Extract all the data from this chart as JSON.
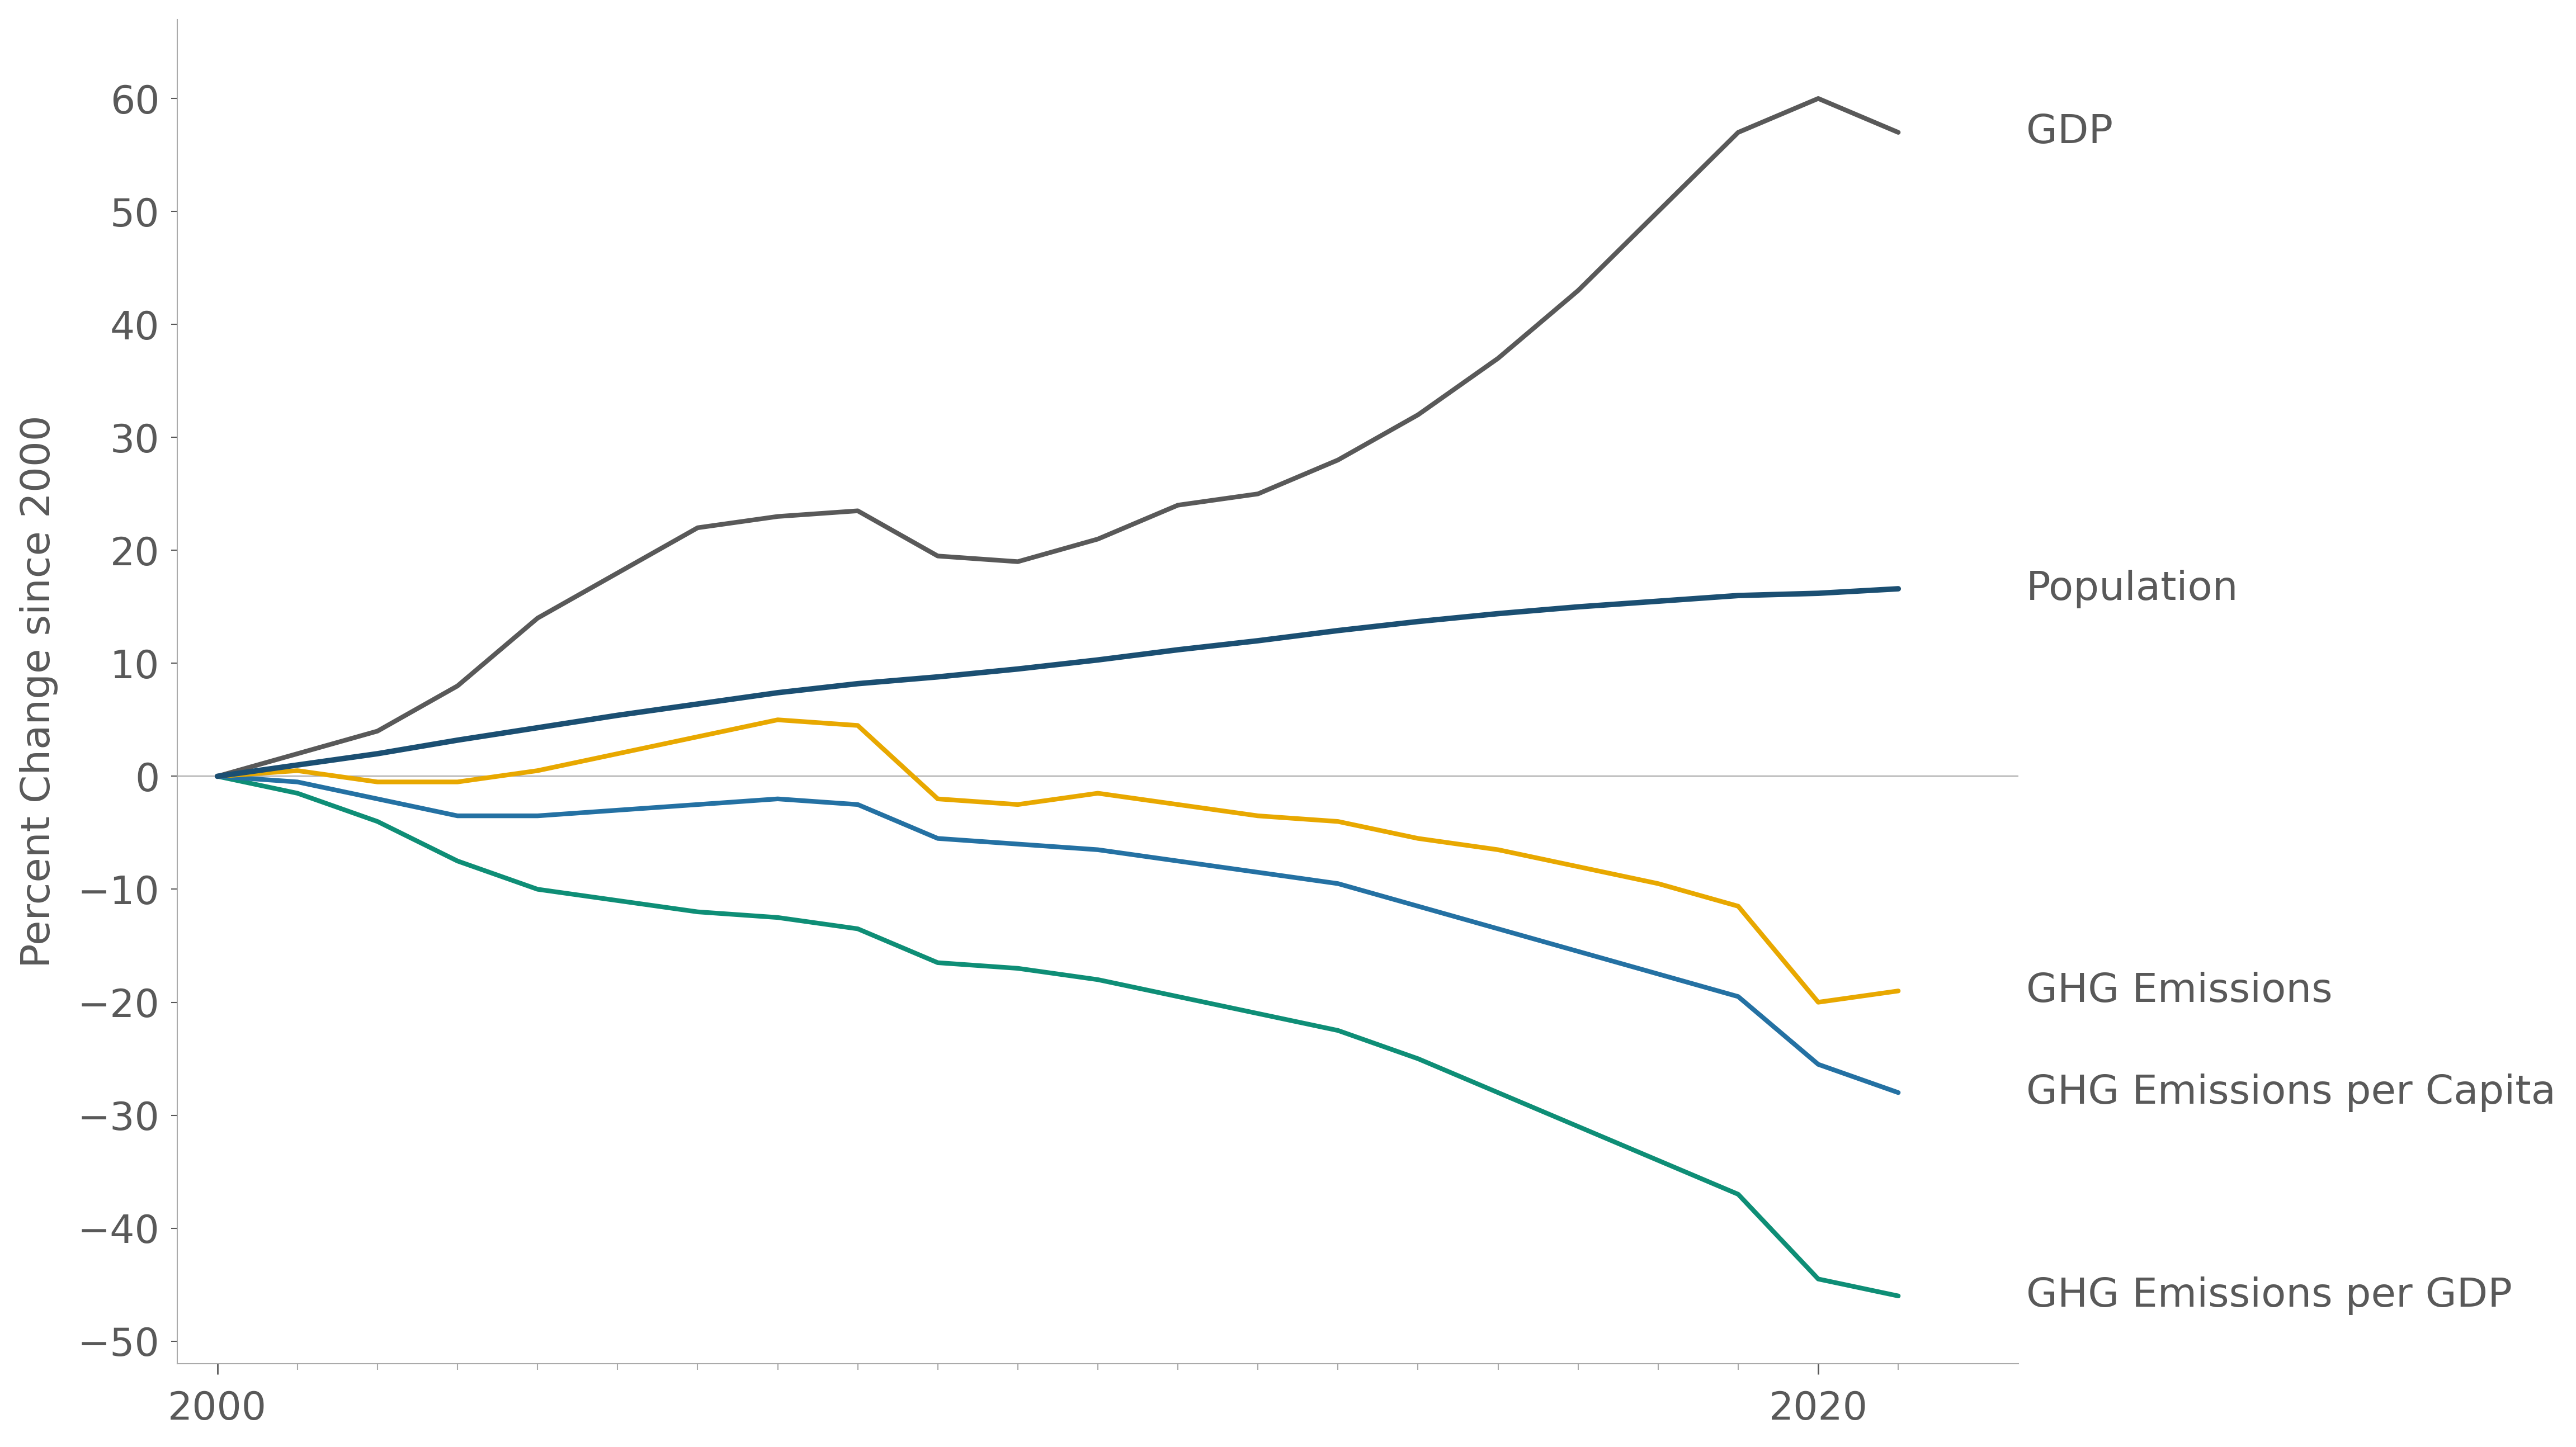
{
  "years": [
    2000,
    2001,
    2002,
    2003,
    2004,
    2005,
    2006,
    2007,
    2008,
    2009,
    2010,
    2011,
    2012,
    2013,
    2014,
    2015,
    2016,
    2017,
    2018,
    2019,
    2020,
    2021
  ],
  "gdp": [
    0,
    2,
    4,
    8,
    14,
    18,
    22,
    23,
    23.5,
    19.5,
    19,
    21,
    24,
    25,
    28,
    32,
    37,
    43,
    50,
    57,
    60,
    57
  ],
  "population": [
    0,
    1.0,
    2.0,
    3.2,
    4.3,
    5.4,
    6.4,
    7.4,
    8.2,
    8.8,
    9.5,
    10.3,
    11.2,
    12.0,
    12.9,
    13.7,
    14.4,
    15.0,
    15.5,
    16.0,
    16.2,
    16.6
  ],
  "ghg_emissions": [
    0,
    0.5,
    -0.5,
    -0.5,
    0.5,
    2.0,
    3.5,
    5.0,
    4.5,
    -2.0,
    -2.5,
    -1.5,
    -2.5,
    -3.5,
    -4.0,
    -5.5,
    -6.5,
    -8.0,
    -9.5,
    -11.5,
    -20.0,
    -19.0
  ],
  "ghg_per_capita": [
    0,
    -0.5,
    -2.0,
    -3.5,
    -3.5,
    -3.0,
    -2.5,
    -2.0,
    -2.5,
    -5.5,
    -6.0,
    -6.5,
    -7.5,
    -8.5,
    -9.5,
    -11.5,
    -13.5,
    -15.5,
    -17.5,
    -19.5,
    -25.5,
    -28.0
  ],
  "ghg_per_gdp": [
    0,
    -1.5,
    -4.0,
    -7.5,
    -10.0,
    -11.0,
    -12.0,
    -12.5,
    -13.5,
    -16.5,
    -17.0,
    -18.0,
    -19.5,
    -21.0,
    -22.5,
    -25.0,
    -28.0,
    -31.0,
    -34.0,
    -37.0,
    -44.5,
    -46.0
  ],
  "colors": {
    "gdp": "#595959",
    "population": "#1B4F72",
    "ghg_emissions": "#E8A800",
    "ghg_per_capita": "#2471A3",
    "ghg_per_gdp": "#0E8E76"
  },
  "line_widths": {
    "gdp": 6,
    "population": 7,
    "ghg_emissions": 6,
    "ghg_per_capita": 6,
    "ghg_per_gdp": 6
  },
  "labels": {
    "gdp": "GDP",
    "population": "Population",
    "ghg_emissions": "GHG Emissions",
    "ghg_per_capita": "GHG Emissions per Capita",
    "ghg_per_gdp": "GHG Emissions per GDP"
  },
  "ylabel": "Percent Change since 2000",
  "ylim": [
    -52,
    67
  ],
  "xlim": [
    1999.5,
    2022.5
  ],
  "yticks": [
    -50,
    -40,
    -30,
    -20,
    -10,
    0,
    10,
    20,
    30,
    40,
    50,
    60
  ],
  "xticks": [
    2000,
    2020
  ],
  "background_color": "#ffffff",
  "ylabel_fontsize": 52,
  "tick_fontsize": 50,
  "annotation_fontsize": 52,
  "label_color": "#595959",
  "spine_color": "#aaaaaa",
  "zero_line_color": "#aaaaaa",
  "minor_tick_color": "#aaaaaa"
}
